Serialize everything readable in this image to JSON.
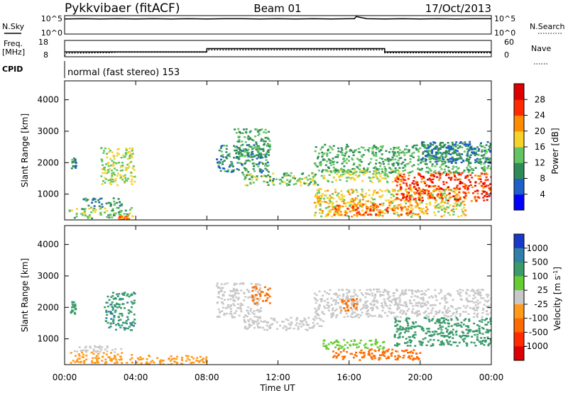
{
  "header": {
    "station": "Pykkvibaer (fitACF)",
    "beam": "Beam 01",
    "date": "17/Oct/2013"
  },
  "top_panels": {
    "nsky_label": "N.Sky",
    "nsearch_label": "N.Search",
    "freq_label_line1": "Freq.",
    "freq_label_line2": "[MHz]",
    "nave_label": "Nave",
    "cpid_label": "CPID",
    "cpid_text": "normal (fast stereo) 153",
    "noise_ticks_left": [
      "10^5",
      "10^0"
    ],
    "noise_ticks_right": [
      "10^5",
      "10^0"
    ],
    "freq_ticks": [
      "18",
      "8"
    ],
    "nave_ticks": [
      "60",
      "0"
    ],
    "noise_series": {
      "name": "N.Sky",
      "x_hours": [
        0,
        1,
        2,
        3,
        4,
        5,
        6,
        7,
        8,
        9,
        10,
        11,
        12,
        13,
        14,
        15,
        16,
        16.3,
        16.4,
        17,
        18,
        19,
        20,
        21,
        22,
        23,
        24
      ],
      "level": [
        0.82,
        0.83,
        0.82,
        0.83,
        0.82,
        0.83,
        0.82,
        0.83,
        0.82,
        0.83,
        0.83,
        0.82,
        0.83,
        0.82,
        0.83,
        0.82,
        0.83,
        0.83,
        0.95,
        0.83,
        0.82,
        0.83,
        0.82,
        0.83,
        0.82,
        0.83,
        0.83
      ]
    },
    "freq_series": {
      "name": "Freq.",
      "x_hours": [
        0,
        0.1,
        2.5,
        3.0,
        8.0,
        8.0,
        18.0,
        18.0,
        24
      ],
      "mhz": [
        8.4,
        10.2,
        10.5,
        10.8,
        10.8,
        12.2,
        12.2,
        10.4,
        10.4
      ]
    },
    "nave_series": {
      "name": "Nave",
      "x_hours": [
        0,
        8.0,
        8.0,
        18.0,
        18.0,
        24
      ],
      "values": [
        18,
        18,
        30,
        30,
        18,
        18
      ]
    }
  },
  "chart_data": [
    {
      "type": "heatmap",
      "title": "Power",
      "ylabel": "Slant Range [km]",
      "xlabel": "",
      "xlim_hours": [
        0,
        24
      ],
      "ylim": [
        180,
        4600
      ],
      "yticks": [
        1000,
        2000,
        3000,
        4000
      ],
      "colorbar": {
        "label": "Power [dB]",
        "ticks": [
          "4",
          "8",
          "12",
          "16",
          "20",
          "24",
          "28"
        ],
        "colors": [
          "#0000ff",
          "#1e5fc8",
          "#2e8b57",
          "#62c462",
          "#f6d22b",
          "#ff8c00",
          "#ff2a00",
          "#dc0000"
        ]
      },
      "regions": [
        {
          "t0": 0.3,
          "t1": 0.6,
          "r0": 1800,
          "r1": 2200,
          "value": 10
        },
        {
          "t0": 0.2,
          "t1": 3.8,
          "r0": 250,
          "r1": 600,
          "value": 14
        },
        {
          "t0": 1.0,
          "t1": 3.2,
          "r0": 600,
          "r1": 900,
          "value": 10
        },
        {
          "t0": 2.0,
          "t1": 3.9,
          "r0": 1300,
          "r1": 2500,
          "value": 16
        },
        {
          "t0": 3.0,
          "t1": 3.6,
          "r0": 200,
          "r1": 350,
          "value": 24
        },
        {
          "t0": 8.5,
          "t1": 11.5,
          "r0": 1700,
          "r1": 2600,
          "value": 10
        },
        {
          "t0": 9.5,
          "t1": 11.5,
          "r0": 2200,
          "r1": 3100,
          "value": 12
        },
        {
          "t0": 10.0,
          "t1": 14.5,
          "r0": 1300,
          "r1": 1700,
          "value": 14
        },
        {
          "t0": 14.0,
          "t1": 24.0,
          "r0": 1700,
          "r1": 2600,
          "value": 12
        },
        {
          "t0": 14.5,
          "t1": 19.0,
          "r0": 1400,
          "r1": 1800,
          "value": 16
        },
        {
          "t0": 14.0,
          "t1": 22.5,
          "r0": 300,
          "r1": 1200,
          "value": 18
        },
        {
          "t0": 15.0,
          "t1": 19.5,
          "r0": 350,
          "r1": 700,
          "value": 24
        },
        {
          "t0": 18.5,
          "t1": 24.0,
          "r0": 800,
          "r1": 1700,
          "value": 26
        },
        {
          "t0": 20.0,
          "t1": 24.0,
          "r0": 2000,
          "r1": 2700,
          "value": 8
        }
      ]
    },
    {
      "type": "heatmap",
      "title": "Velocity",
      "ylabel": "Slant Range [km]",
      "xlabel": "Time UT",
      "xlim_hours": [
        0,
        24
      ],
      "xticks": [
        "00:00",
        "04:00",
        "08:00",
        "12:00",
        "16:00",
        "20:00",
        "00:00"
      ],
      "ylim": [
        180,
        4600
      ],
      "yticks": [
        1000,
        2000,
        3000,
        4000
      ],
      "colorbar": {
        "label": "Velocity [m s^-1]",
        "ticks": [
          "1000",
          "500",
          "100",
          "25",
          "-25",
          "-100",
          "-500",
          "-1000"
        ],
        "colors": [
          "#1838c8",
          "#2f7fa8",
          "#3a9a6a",
          "#66cc33",
          "#c8c8c8",
          "#ff9a1a",
          "#ff6a00",
          "#ff2a00",
          "#dc0000"
        ]
      },
      "regions": [
        {
          "t0": 0.3,
          "t1": 0.6,
          "r0": 1800,
          "r1": 2200,
          "value": 300
        },
        {
          "t0": 0.2,
          "t1": 3.8,
          "r0": 250,
          "r1": 600,
          "value": -60
        },
        {
          "t0": 0.5,
          "t1": 3.2,
          "r0": 600,
          "r1": 800,
          "value": 0
        },
        {
          "t0": 2.2,
          "t1": 3.9,
          "r0": 1300,
          "r1": 2500,
          "value": 400
        },
        {
          "t0": 4.0,
          "t1": 8.0,
          "r0": 200,
          "r1": 500,
          "value": -60
        },
        {
          "t0": 8.5,
          "t1": 11.0,
          "r0": 1700,
          "r1": 2800,
          "value": 0
        },
        {
          "t0": 10.5,
          "t1": 11.5,
          "r0": 2100,
          "r1": 2700,
          "value": -150
        },
        {
          "t0": 10.0,
          "t1": 14.5,
          "r0": 1300,
          "r1": 1700,
          "value": 0
        },
        {
          "t0": 14.0,
          "t1": 24.0,
          "r0": 1700,
          "r1": 2600,
          "value": 0
        },
        {
          "t0": 14.5,
          "t1": 18.0,
          "r0": 700,
          "r1": 1000,
          "value": 60
        },
        {
          "t0": 15.0,
          "t1": 20.0,
          "r0": 350,
          "r1": 700,
          "value": -150
        },
        {
          "t0": 15.5,
          "t1": 16.5,
          "r0": 1900,
          "r1": 2300,
          "value": -150
        },
        {
          "t0": 18.5,
          "t1": 24.0,
          "r0": 800,
          "r1": 1700,
          "value": 300
        }
      ]
    }
  ]
}
